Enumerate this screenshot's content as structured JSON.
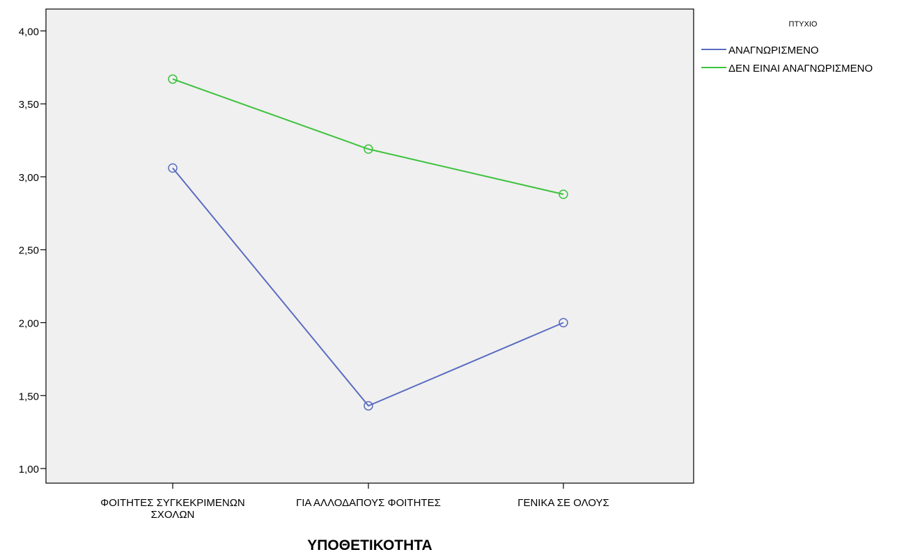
{
  "chart_data": {
    "type": "line",
    "title": "",
    "xlabel": "ΥΠΟΘΕΤΙΚΟΤΗΤΑ",
    "ylabel": "",
    "categories": [
      [
        "ΦΟΙΤΗΤΕΣ ΣΥΓΚΕΚΡΙΜΕΝΩΝ",
        "ΣΧΟΛΩΝ"
      ],
      [
        "ΓΙΑ ΑΛΛΟΔΑΠΟΥΣ ΦΟΙΤΗΤΕΣ"
      ],
      [
        "ΓΕΝΙΚΑ ΣΕ ΟΛΟΥΣ"
      ]
    ],
    "ylim": [
      0.9,
      4.15
    ],
    "yticks": [
      "1,00",
      "1,50",
      "2,00",
      "2,50",
      "3,00",
      "3,50",
      "4,00"
    ],
    "ytick_values": [
      1.0,
      1.5,
      2.0,
      2.5,
      3.0,
      3.5,
      4.0
    ],
    "legend_title": "ΠΤΥΧΙΟ",
    "legend_position": "top-right outside",
    "grid": false,
    "background": "#f0f0f0",
    "series": [
      {
        "name": "ΑΝΑΓΝΩΡΙΣΜΕΝΟ",
        "color": "#5a6cc0",
        "marker": "circle-open",
        "values": [
          3.06,
          1.43,
          2.0
        ]
      },
      {
        "name": "ΔΕΝ ΕΙΝΑΙ ΑΝΑΓΝΩΡΙΣΜΕΝΟ",
        "color": "#3cc23c",
        "marker": "circle-open",
        "values": [
          3.67,
          3.19,
          2.88
        ]
      }
    ]
  }
}
